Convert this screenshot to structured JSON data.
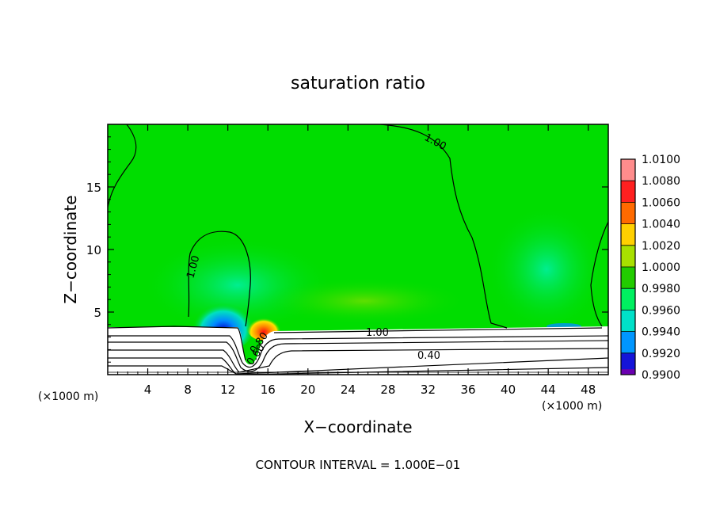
{
  "chart_data": {
    "type": "heatmap",
    "title": "saturation ratio",
    "xlabel": "X−coordinate",
    "ylabel": "Z−coordinate",
    "x_units_left": "(×1000 m)",
    "x_units_right": "(×1000 m)",
    "footer": "CONTOUR INTERVAL = 1.000E−01",
    "xlim": [
      0,
      50
    ],
    "ylim": [
      0,
      20
    ],
    "x_ticks": [
      4,
      8,
      12,
      16,
      20,
      24,
      28,
      32,
      36,
      40,
      44,
      48
    ],
    "y_ticks": [
      5,
      10,
      15
    ],
    "colorbar": {
      "levels": [
        "1.0100",
        "1.0080",
        "1.0060",
        "1.0040",
        "1.0020",
        "1.0000",
        "0.9980",
        "0.9960",
        "0.9940",
        "0.9920",
        "0.9900"
      ],
      "colors": [
        "#ff8c8c",
        "#ff2020",
        "#ff6a00",
        "#ffd000",
        "#a8e000",
        "#22cc00",
        "#00f060",
        "#00e0c8",
        "#0096ff",
        "#1414d8",
        "#6a00b0"
      ]
    },
    "background_color": "#00dd00",
    "contour_labels": [
      "1.00",
      "1.00",
      "1.00",
      "0.40",
      "0.80",
      "0.60"
    ]
  }
}
